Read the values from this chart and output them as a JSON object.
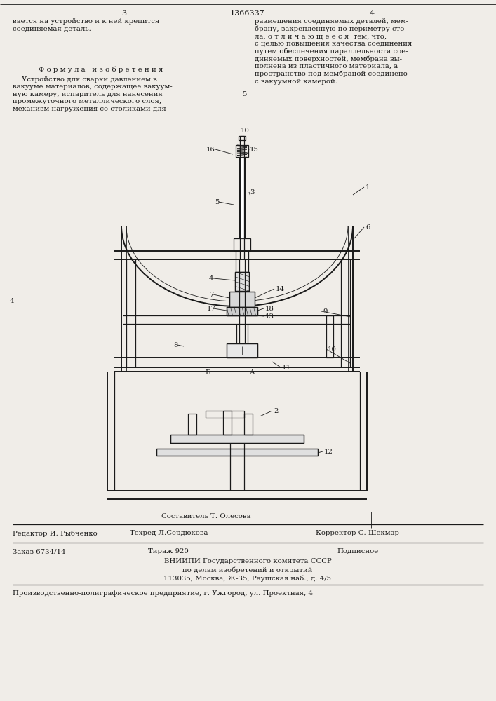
{
  "bg_color": "#f0ede8",
  "page_num_left": "3",
  "page_num_center": "1366337",
  "page_num_right": "4",
  "top_text_left": "вается на устройство и к ней крепится\nсоединяемая деталь.",
  "formula_title": "Ф о р м у л а   и з о б р е т е н и я",
  "formula_text": "    Устройство для сварки давлением в\nвакууме материалов, содержащее вакуум-\nную камеру, испаритель для нанесения\nпромежуточного металлического слоя,\nмеханизм нагружения со столиками для",
  "top_text_right": "размещения соединяемых деталей, мем-\nбрану, закрепленную по периметру сто-\nла, о т л и ч а ю щ е е с я  тем, что,\nс целью повышения качества соединения\nпутем обеспечения параллельности сое-\nдиняемых поверхностей, мембрана вы-\nполнена из пластичного материала, а\nпространство под мембраной соединено\nс вакуумной камерой.",
  "footer_editor": "Редактор И. Рыбченко",
  "footer_composer": "Составитель Т. Олесова",
  "footer_tech": "Техред Л.Сердюкова",
  "footer_corrector": "Корректор С. Шекмар",
  "footer_order": "Заказ 6734/14",
  "footer_circ": "Тираж 920",
  "footer_sub": "Подписное",
  "footer_vniiipi": "ВНИИПИ Государственного комитета СССР",
  "footer_affairs": "по делам изобретений и открытий",
  "footer_address": "113035, Москва, Ж-35, Раушская наб., д. 4/5",
  "footer_prod": "Производственно-полиграфическое предприятие, г. Ужгород, ул. Проектная, 4",
  "draw_color": "#1a1a1a"
}
